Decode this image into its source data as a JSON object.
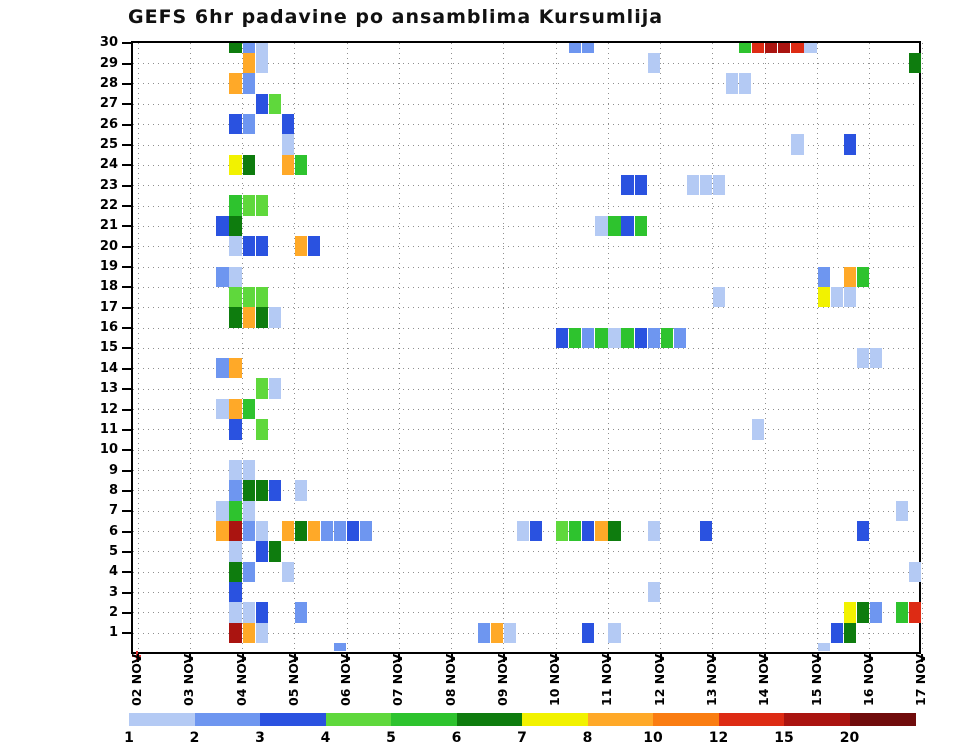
{
  "title": "GEFS 6hr padavine po ansamblima Kursumlija",
  "chart_data": {
    "type": "heatmap",
    "title": "GEFS 6hr padavine po ansamblima Kursumlija",
    "xlabel": "",
    "ylabel": "",
    "x_tick_labels": [
      "02 NOV",
      "03 NOV",
      "04 NOV",
      "05 NOV",
      "06 NOV",
      "07 NOV",
      "08 NOV",
      "09 NOV",
      "10 NOV",
      "11 NOV",
      "12 NOV",
      "13 NOV",
      "14 NOV",
      "15 NOV",
      "16 NOV",
      "17 NOV"
    ],
    "y_tick_labels": [
      "30",
      "29",
      "28",
      "27",
      "26",
      "25",
      "24",
      "23",
      "22",
      "21",
      "20",
      "19",
      "18",
      "17",
      "16",
      "15",
      "14",
      "13",
      "12",
      "11",
      "10",
      "9",
      "8",
      "7",
      "6",
      "5",
      "4",
      "3",
      "2",
      "1"
    ],
    "y_range": [
      0,
      30
    ],
    "grid": "dotted both axes",
    "slot_hours": 6,
    "slot0_time": "02 NOV 00h (each slot = one 6-hour period)",
    "legend_position": "bottom colorbar",
    "colorbar": {
      "tick_values": [
        1,
        2,
        3,
        4,
        5,
        6,
        7,
        8,
        10,
        12,
        15,
        20
      ],
      "range_labels": [
        "1-2",
        "2-3",
        "3-4",
        "4-5",
        "5-6",
        "6-7",
        "7-8",
        "8-10",
        "10-12",
        "12-15",
        "15-20",
        ">20"
      ],
      "colors": [
        "#B4CAF4",
        "#6E96F0",
        "#2A52E0",
        "#5FD83C",
        "#2EC32E",
        "#0E7C0E",
        "#F2F200",
        "#FFA928",
        "#FA7D12",
        "#DD2B14",
        "#AA1410",
        "#700C0C"
      ]
    },
    "rows_shifted_half_down": [
      15,
      16,
      17,
      18,
      19
    ],
    "cells_format": "[member, slot_index_from_02NOV_00h, color_category_index]",
    "cells": [
      [
        30,
        7,
        5
      ],
      [
        30,
        8,
        1
      ],
      [
        30,
        9,
        0
      ],
      [
        30,
        33,
        1
      ],
      [
        30,
        34,
        1
      ],
      [
        30,
        46,
        4
      ],
      [
        30,
        47,
        9
      ],
      [
        30,
        48,
        10
      ],
      [
        30,
        49,
        10
      ],
      [
        30,
        50,
        9
      ],
      [
        30,
        51,
        0
      ],
      [
        29,
        8,
        7
      ],
      [
        29,
        9,
        0
      ],
      [
        29,
        39,
        0
      ],
      [
        29,
        59,
        5
      ],
      [
        28,
        7,
        7
      ],
      [
        28,
        8,
        1
      ],
      [
        28,
        45,
        0
      ],
      [
        28,
        46,
        0
      ],
      [
        27,
        9,
        2
      ],
      [
        27,
        10,
        3
      ],
      [
        26,
        7,
        2
      ],
      [
        26,
        8,
        1
      ],
      [
        26,
        11,
        2
      ],
      [
        25,
        11,
        0
      ],
      [
        25,
        50,
        0
      ],
      [
        25,
        54,
        2
      ],
      [
        24,
        7,
        6
      ],
      [
        24,
        8,
        5
      ],
      [
        24,
        11,
        7
      ],
      [
        24,
        12,
        4
      ],
      [
        23,
        37,
        2
      ],
      [
        23,
        38,
        2
      ],
      [
        23,
        42,
        0
      ],
      [
        23,
        43,
        0
      ],
      [
        23,
        44,
        0
      ],
      [
        22,
        7,
        4
      ],
      [
        22,
        8,
        3
      ],
      [
        22,
        9,
        3
      ],
      [
        21,
        6,
        2
      ],
      [
        21,
        7,
        5
      ],
      [
        21,
        35,
        0
      ],
      [
        21,
        36,
        4
      ],
      [
        21,
        37,
        2
      ],
      [
        21,
        38,
        4
      ],
      [
        20,
        7,
        0
      ],
      [
        20,
        8,
        2
      ],
      [
        20,
        9,
        2
      ],
      [
        20,
        12,
        7
      ],
      [
        20,
        13,
        2
      ],
      [
        19,
        6,
        1
      ],
      [
        19,
        7,
        0
      ],
      [
        19,
        52,
        1
      ],
      [
        19,
        54,
        7
      ],
      [
        19,
        55,
        4
      ],
      [
        18,
        7,
        3
      ],
      [
        18,
        8,
        3
      ],
      [
        18,
        9,
        3
      ],
      [
        18,
        44,
        0
      ],
      [
        18,
        52,
        6
      ],
      [
        18,
        53,
        0
      ],
      [
        18,
        54,
        0
      ],
      [
        17,
        7,
        5
      ],
      [
        17,
        8,
        7
      ],
      [
        17,
        9,
        5
      ],
      [
        17,
        10,
        0
      ],
      [
        16,
        32,
        2
      ],
      [
        16,
        33,
        4
      ],
      [
        16,
        34,
        1
      ],
      [
        16,
        35,
        4
      ],
      [
        16,
        36,
        0
      ],
      [
        16,
        37,
        4
      ],
      [
        16,
        38,
        2
      ],
      [
        16,
        39,
        1
      ],
      [
        16,
        40,
        4
      ],
      [
        16,
        41,
        1
      ],
      [
        15,
        55,
        0
      ],
      [
        15,
        56,
        0
      ],
      [
        14,
        6,
        1
      ],
      [
        14,
        7,
        7
      ],
      [
        13,
        9,
        3
      ],
      [
        13,
        10,
        0
      ],
      [
        12,
        6,
        0
      ],
      [
        12,
        7,
        7
      ],
      [
        12,
        8,
        4
      ],
      [
        11,
        7,
        2
      ],
      [
        11,
        9,
        3
      ],
      [
        11,
        47,
        0
      ],
      [
        9,
        7,
        0
      ],
      [
        9,
        8,
        0
      ],
      [
        8,
        7,
        1
      ],
      [
        8,
        8,
        5
      ],
      [
        8,
        9,
        5
      ],
      [
        8,
        10,
        2
      ],
      [
        8,
        12,
        0
      ],
      [
        7,
        6,
        0
      ],
      [
        7,
        7,
        4
      ],
      [
        7,
        8,
        0
      ],
      [
        7,
        58,
        0
      ],
      [
        6,
        6,
        7
      ],
      [
        6,
        7,
        10
      ],
      [
        6,
        8,
        1
      ],
      [
        6,
        9,
        0
      ],
      [
        6,
        11,
        7
      ],
      [
        6,
        12,
        5
      ],
      [
        6,
        13,
        7
      ],
      [
        6,
        14,
        1
      ],
      [
        6,
        15,
        1
      ],
      [
        6,
        16,
        2
      ],
      [
        6,
        17,
        1
      ],
      [
        6,
        29,
        0
      ],
      [
        6,
        30,
        2
      ],
      [
        6,
        32,
        3
      ],
      [
        6,
        33,
        4
      ],
      [
        6,
        34,
        2
      ],
      [
        6,
        35,
        7
      ],
      [
        6,
        36,
        5
      ],
      [
        6,
        39,
        0
      ],
      [
        6,
        43,
        2
      ],
      [
        6,
        55,
        2
      ],
      [
        5,
        7,
        0
      ],
      [
        5,
        9,
        2
      ],
      [
        5,
        10,
        5
      ],
      [
        4,
        7,
        5
      ],
      [
        4,
        8,
        1
      ],
      [
        4,
        11,
        0
      ],
      [
        4,
        59,
        0
      ],
      [
        3,
        7,
        2
      ],
      [
        3,
        39,
        0
      ],
      [
        2,
        7,
        0
      ],
      [
        2,
        8,
        0
      ],
      [
        2,
        9,
        2
      ],
      [
        2,
        12,
        1
      ],
      [
        2,
        54,
        6
      ],
      [
        2,
        55,
        5
      ],
      [
        2,
        56,
        1
      ],
      [
        2,
        58,
        4
      ],
      [
        2,
        59,
        9
      ],
      [
        1,
        7,
        10
      ],
      [
        1,
        8,
        7
      ],
      [
        1,
        9,
        0
      ],
      [
        1,
        26,
        1
      ],
      [
        1,
        27,
        7
      ],
      [
        1,
        28,
        0
      ],
      [
        1,
        34,
        2
      ],
      [
        1,
        36,
        0
      ],
      [
        1,
        53,
        2
      ],
      [
        1,
        54,
        5
      ],
      [
        0,
        15,
        1
      ],
      [
        0,
        52,
        0
      ]
    ]
  },
  "origin_marker_color": "#e23030"
}
